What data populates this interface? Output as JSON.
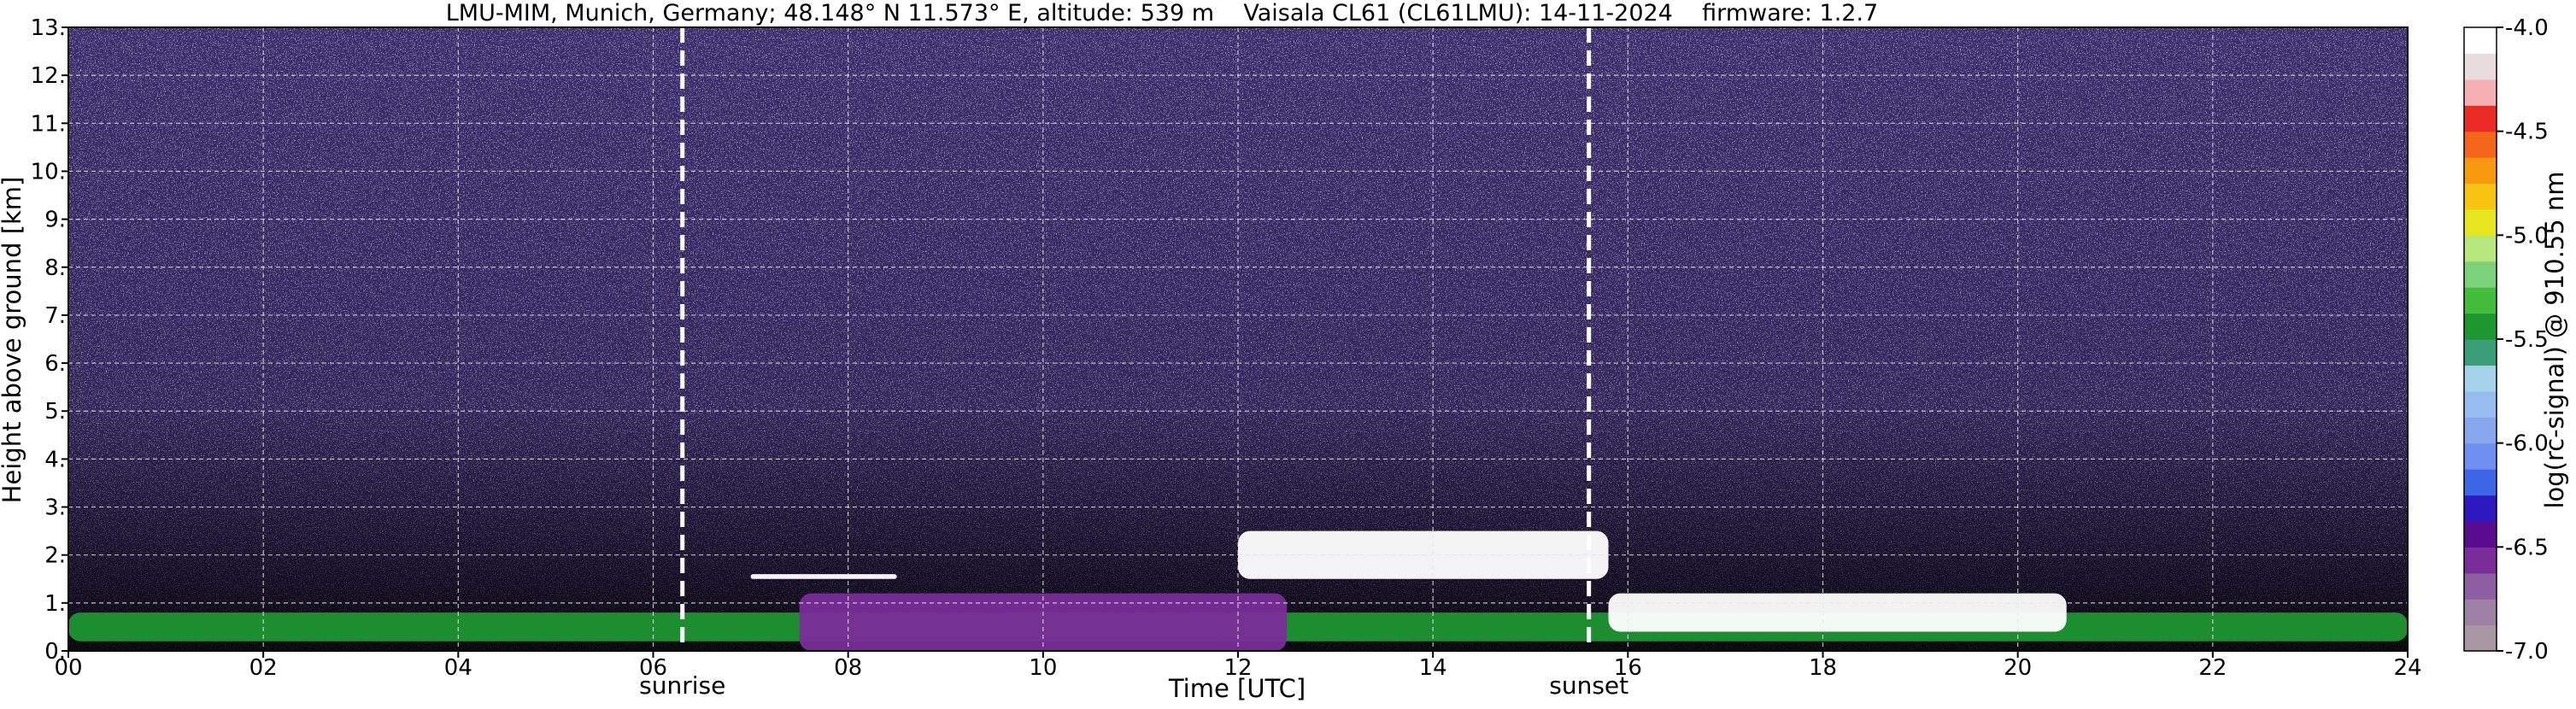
{
  "chart_data": {
    "type": "heatmap",
    "title": "LMU-MIM, Munich, Germany; 48.148° N 11.573° E, altitude: 539 m    Vaisala CL61 (CL61LMU): 14-11-2024    firmware: 1.2.7",
    "xlabel": "Time [UTC]",
    "ylabel": "Height above ground [km]",
    "xlim": [
      0,
      24
    ],
    "ylim": [
      0,
      13
    ],
    "x_ticks": [
      "00",
      "02",
      "04",
      "06",
      "08",
      "10",
      "12",
      "14",
      "16",
      "18",
      "20",
      "22",
      "24"
    ],
    "y_ticks": [
      "0.",
      "1.",
      "2.",
      "3.",
      "4.",
      "5.",
      "6.",
      "7.",
      "8.",
      "9.",
      "10.",
      "11.",
      "12.",
      "13."
    ],
    "grid": true,
    "markers": [
      {
        "label": "sunrise",
        "x": 6.3
      },
      {
        "label": "sunset",
        "x": 15.6
      }
    ],
    "colorbar": {
      "label": "log(rc-signal) @ 910.55 nm",
      "range": [
        -7.0,
        -4.0
      ],
      "ticks": [
        "-4.0",
        "-4.5",
        "-5.0",
        "-5.5",
        "-6.0",
        "-6.5",
        "-7.0"
      ],
      "colors": [
        "#a997a3",
        "#9e81a4",
        "#8d5fa2",
        "#7a2d98",
        "#5b0b8e",
        "#2e18c0",
        "#3c66e6",
        "#6f8ff0",
        "#88a6ec",
        "#97bdf0",
        "#a6d3ea",
        "#3a9e78",
        "#1e9630",
        "#43bb3b",
        "#7bd27a",
        "#b7e67c",
        "#e7e51f",
        "#f6c411",
        "#f79a0e",
        "#f4661a",
        "#ea2a24",
        "#f5b0b3",
        "#e9dcdc",
        "#ffffff"
      ]
    },
    "features": [
      {
        "name": "boundary layer",
        "x": [
          0,
          24
        ],
        "height_km": [
          0.2,
          0.8
        ],
        "log_signal": -5.5
      },
      {
        "name": "aerosol layer",
        "x": [
          7.5,
          12.5
        ],
        "height_km": [
          0.0,
          1.2
        ],
        "log_signal": -6.6
      },
      {
        "name": "cloud",
        "x": [
          7.0,
          8.5
        ],
        "height_km": [
          1.5,
          1.6
        ],
        "log_signal": -4.0
      },
      {
        "name": "cloud",
        "x": [
          12.0,
          15.8
        ],
        "height_km": [
          1.5,
          2.5
        ],
        "log_signal": -4.0
      },
      {
        "name": "cloud",
        "x": [
          15.8,
          20.5
        ],
        "height_km": [
          0.4,
          1.2
        ],
        "log_signal": -4.0
      }
    ]
  }
}
